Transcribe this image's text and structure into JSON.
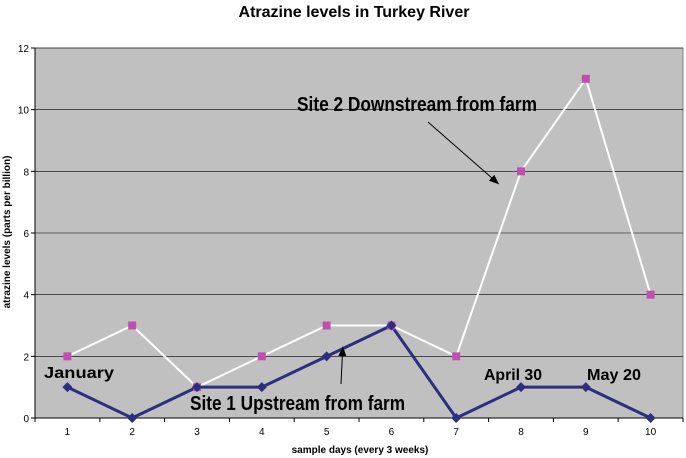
{
  "chart_data": {
    "type": "line",
    "title": "Atrazine levels in Turkey River",
    "xlabel": "sample days (every 3 weeks)",
    "ylabel": "atrazine levels (parts per billion)",
    "x": [
      1,
      2,
      3,
      4,
      5,
      6,
      7,
      8,
      9,
      10
    ],
    "xlim": [
      0.5,
      10.5
    ],
    "ylim": [
      0,
      12
    ],
    "yticks": [
      0,
      2,
      4,
      6,
      8,
      10,
      12
    ],
    "grid": true,
    "plot_background": "#c0c0c0",
    "series": [
      {
        "values": [
          2,
          3,
          1,
          2,
          3,
          3,
          2,
          8,
          11,
          4
        ],
        "line_color": "#ffffff",
        "marker": "square",
        "marker_color": "#c050b0"
      },
      {
        "values": [
          1,
          0,
          1,
          1,
          2,
          3,
          0,
          1,
          1,
          0
        ],
        "line_color": "#2e2e7e",
        "marker": "diamond",
        "marker_color": "#2e2e7e"
      }
    ],
    "annotations": [
      {
        "text": "Site 2 Downstream from farm",
        "arrow_to": {
          "x": 7.65,
          "y": 7.6
        }
      },
      {
        "text": "Site 1 Upstream from farm",
        "arrow_to": {
          "x": 5.25,
          "y": 2.3
        }
      },
      {
        "text": "January"
      },
      {
        "text": "April 30"
      },
      {
        "text": "May 20"
      }
    ]
  }
}
